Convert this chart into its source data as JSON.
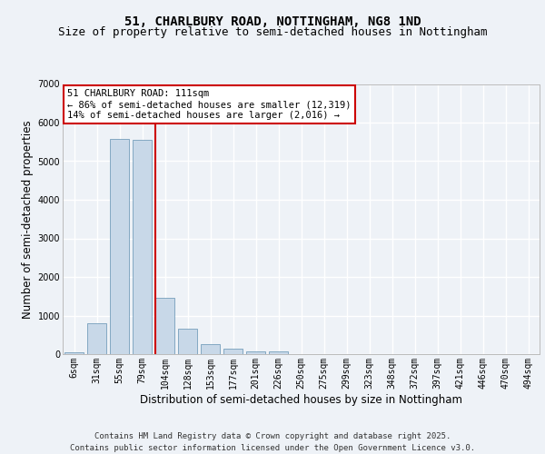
{
  "title_line1": "51, CHARLBURY ROAD, NOTTINGHAM, NG8 1ND",
  "title_line2": "Size of property relative to semi-detached houses in Nottingham",
  "xlabel": "Distribution of semi-detached houses by size in Nottingham",
  "ylabel": "Number of semi-detached properties",
  "categories": [
    "6sqm",
    "31sqm",
    "55sqm",
    "79sqm",
    "104sqm",
    "128sqm",
    "153sqm",
    "177sqm",
    "201sqm",
    "226sqm",
    "250sqm",
    "275sqm",
    "299sqm",
    "323sqm",
    "348sqm",
    "372sqm",
    "397sqm",
    "421sqm",
    "446sqm",
    "470sqm",
    "494sqm"
  ],
  "values": [
    55,
    800,
    5580,
    5560,
    1450,
    650,
    270,
    140,
    80,
    60,
    0,
    0,
    0,
    0,
    0,
    0,
    0,
    0,
    0,
    0,
    0
  ],
  "bar_color": "#c8d8e8",
  "bar_edge_color": "#6090b0",
  "highlight_line_index": 4,
  "highlight_line_color": "#cc0000",
  "annotation_line1": "51 CHARLBURY ROAD: 111sqm",
  "annotation_line2": "← 86% of semi-detached houses are smaller (12,319)",
  "annotation_line3": "14% of semi-detached houses are larger (2,016) →",
  "annotation_box_color": "#ffffff",
  "annotation_box_edge": "#cc0000",
  "ylim": [
    0,
    7000
  ],
  "yticks": [
    0,
    1000,
    2000,
    3000,
    4000,
    5000,
    6000,
    7000
  ],
  "footer_line1": "Contains HM Land Registry data © Crown copyright and database right 2025.",
  "footer_line2": "Contains public sector information licensed under the Open Government Licence v3.0.",
  "bg_color": "#eef2f7",
  "grid_color": "#ffffff",
  "title_fontsize": 10,
  "subtitle_fontsize": 9,
  "axis_label_fontsize": 8.5,
  "tick_fontsize": 7,
  "annotation_fontsize": 7.5,
  "footer_fontsize": 6.5
}
